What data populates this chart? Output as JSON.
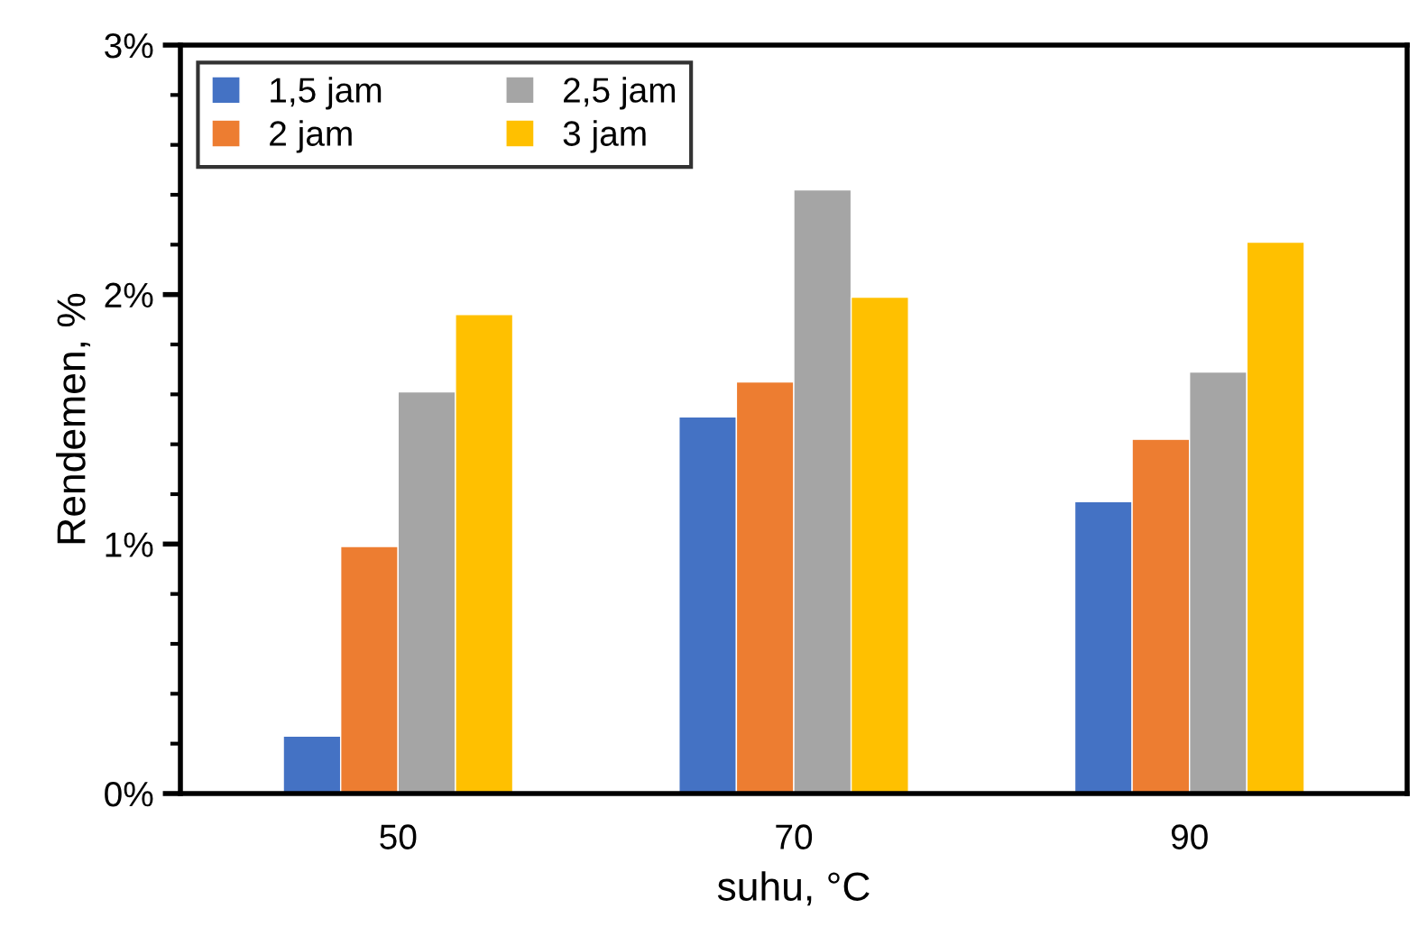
{
  "chart_data": {
    "type": "bar",
    "xlabel": "suhu, °C",
    "ylabel": "Rendemen, %",
    "categories": [
      "50",
      "70",
      "90"
    ],
    "series": [
      {
        "name": "1,5 jam",
        "color": "#4472c4",
        "values": [
          0.23,
          1.51,
          1.17
        ]
      },
      {
        "name": "2 jam",
        "color": "#ed7d31",
        "values": [
          0.99,
          1.65,
          1.42
        ]
      },
      {
        "name": "2,5 jam",
        "color": "#a5a5a5",
        "values": [
          1.61,
          2.42,
          1.69
        ]
      },
      {
        "name": "3 jam",
        "color": "#ffc000",
        "values": [
          1.92,
          1.99,
          2.21
        ]
      }
    ],
    "ylim": [
      0,
      3
    ],
    "yticks": [
      {
        "value": 0,
        "label": "0%"
      },
      {
        "value": 1,
        "label": "1%"
      },
      {
        "value": 2,
        "label": "2%"
      },
      {
        "value": 3,
        "label": "3%"
      }
    ],
    "grid": false,
    "legend": "top left"
  }
}
